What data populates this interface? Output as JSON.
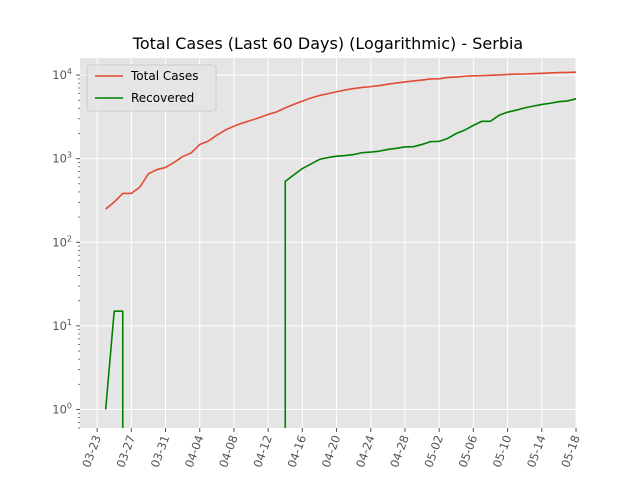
{
  "chart_data": {
    "type": "line",
    "title": "Total Cases (Last 60 Days) (Logarithmic) - Serbia",
    "xlabel": "",
    "ylabel": "",
    "x_scale": "date",
    "y_scale": "log",
    "xlim": [
      "2020-03-21",
      "2020-05-18"
    ],
    "ylim": [
      0.6,
      16000
    ],
    "x_ticks": [
      "03-23",
      "03-27",
      "03-31",
      "04-04",
      "04-08",
      "04-12",
      "04-16",
      "04-20",
      "04-24",
      "04-28",
      "05-02",
      "05-06",
      "05-10",
      "05-14",
      "05-18"
    ],
    "y_ticks": [
      1,
      10,
      100,
      1000,
      10000
    ],
    "y_tick_labels": [
      {
        "base": "10",
        "exp": "0"
      },
      {
        "base": "10",
        "exp": "1"
      },
      {
        "base": "10",
        "exp": "2"
      },
      {
        "base": "10",
        "exp": "3"
      },
      {
        "base": "10",
        "exp": "4"
      }
    ],
    "grid": true,
    "legend_position": "top-left",
    "series": [
      {
        "name": "Total Cases",
        "color": "#E24A33",
        "points": [
          [
            "2020-03-24",
            249
          ],
          [
            "2020-03-25",
            303
          ],
          [
            "2020-03-26",
            384
          ],
          [
            "2020-03-27",
            384
          ],
          [
            "2020-03-28",
            457
          ],
          [
            "2020-03-29",
            659
          ],
          [
            "2020-03-30",
            741
          ],
          [
            "2020-03-31",
            785
          ],
          [
            "2020-04-01",
            900
          ],
          [
            "2020-04-02",
            1060
          ],
          [
            "2020-04-03",
            1171
          ],
          [
            "2020-04-04",
            1476
          ],
          [
            "2020-04-05",
            1624
          ],
          [
            "2020-04-06",
            1908
          ],
          [
            "2020-04-07",
            2200
          ],
          [
            "2020-04-08",
            2447
          ],
          [
            "2020-04-09",
            2666
          ],
          [
            "2020-04-10",
            2867
          ],
          [
            "2020-04-11",
            3105
          ],
          [
            "2020-04-12",
            3380
          ],
          [
            "2020-04-13",
            3630
          ],
          [
            "2020-04-14",
            4054
          ],
          [
            "2020-04-15",
            4465
          ],
          [
            "2020-04-16",
            4873
          ],
          [
            "2020-04-17",
            5318
          ],
          [
            "2020-04-18",
            5690
          ],
          [
            "2020-04-19",
            5994
          ],
          [
            "2020-04-20",
            6318
          ],
          [
            "2020-04-21",
            6630
          ],
          [
            "2020-04-22",
            6890
          ],
          [
            "2020-04-23",
            7114
          ],
          [
            "2020-04-24",
            7276
          ],
          [
            "2020-04-25",
            7483
          ],
          [
            "2020-04-26",
            7779
          ],
          [
            "2020-04-27",
            8042
          ],
          [
            "2020-04-28",
            8275
          ],
          [
            "2020-04-29",
            8497
          ],
          [
            "2020-04-30",
            8724
          ],
          [
            "2020-05-01",
            8986
          ],
          [
            "2020-05-02",
            9009
          ],
          [
            "2020-05-03",
            9362
          ],
          [
            "2020-05-04",
            9464
          ],
          [
            "2020-05-05",
            9677
          ],
          [
            "2020-05-06",
            9791
          ],
          [
            "2020-05-07",
            9848
          ],
          [
            "2020-05-08",
            9943
          ],
          [
            "2020-05-09",
            10032
          ],
          [
            "2020-05-10",
            10176
          ],
          [
            "2020-05-11",
            10243
          ],
          [
            "2020-05-12",
            10295
          ],
          [
            "2020-05-13",
            10374
          ],
          [
            "2020-05-14",
            10496
          ],
          [
            "2020-05-15",
            10610
          ],
          [
            "2020-05-16",
            10699
          ],
          [
            "2020-05-17",
            10743
          ],
          [
            "2020-05-18",
            10833
          ]
        ]
      },
      {
        "name": "Recovered",
        "color": "#008000",
        "points": [
          [
            "2020-03-24",
            1
          ],
          [
            "2020-03-25",
            15
          ],
          [
            "2020-03-26",
            15
          ],
          [
            "2020-03-26",
            0.01
          ],
          [
            "2020-04-14",
            0.01
          ],
          [
            "2020-04-14",
            534
          ],
          [
            "2020-04-15",
            640
          ],
          [
            "2020-04-16",
            762
          ],
          [
            "2020-04-17",
            862
          ],
          [
            "2020-04-18",
            980
          ],
          [
            "2020-04-19",
            1030
          ],
          [
            "2020-04-20",
            1070
          ],
          [
            "2020-04-21",
            1090
          ],
          [
            "2020-04-22",
            1120
          ],
          [
            "2020-04-23",
            1180
          ],
          [
            "2020-04-24",
            1200
          ],
          [
            "2020-04-25",
            1230
          ],
          [
            "2020-04-26",
            1290
          ],
          [
            "2020-04-27",
            1330
          ],
          [
            "2020-04-28",
            1380
          ],
          [
            "2020-04-29",
            1390
          ],
          [
            "2020-04-30",
            1480
          ],
          [
            "2020-05-01",
            1600
          ],
          [
            "2020-05-02",
            1610
          ],
          [
            "2020-05-03",
            1750
          ],
          [
            "2020-05-04",
            2000
          ],
          [
            "2020-05-05",
            2200
          ],
          [
            "2020-05-06",
            2500
          ],
          [
            "2020-05-07",
            2800
          ],
          [
            "2020-05-08",
            2800
          ],
          [
            "2020-05-09",
            3300
          ],
          [
            "2020-05-10",
            3600
          ],
          [
            "2020-05-11",
            3800
          ],
          [
            "2020-05-12",
            4050
          ],
          [
            "2020-05-13",
            4250
          ],
          [
            "2020-05-14",
            4450
          ],
          [
            "2020-05-15",
            4600
          ],
          [
            "2020-05-16",
            4800
          ],
          [
            "2020-05-17",
            4900
          ],
          [
            "2020-05-18",
            5200
          ],
          [
            "2020-05-19",
            5400
          ]
        ]
      }
    ]
  }
}
